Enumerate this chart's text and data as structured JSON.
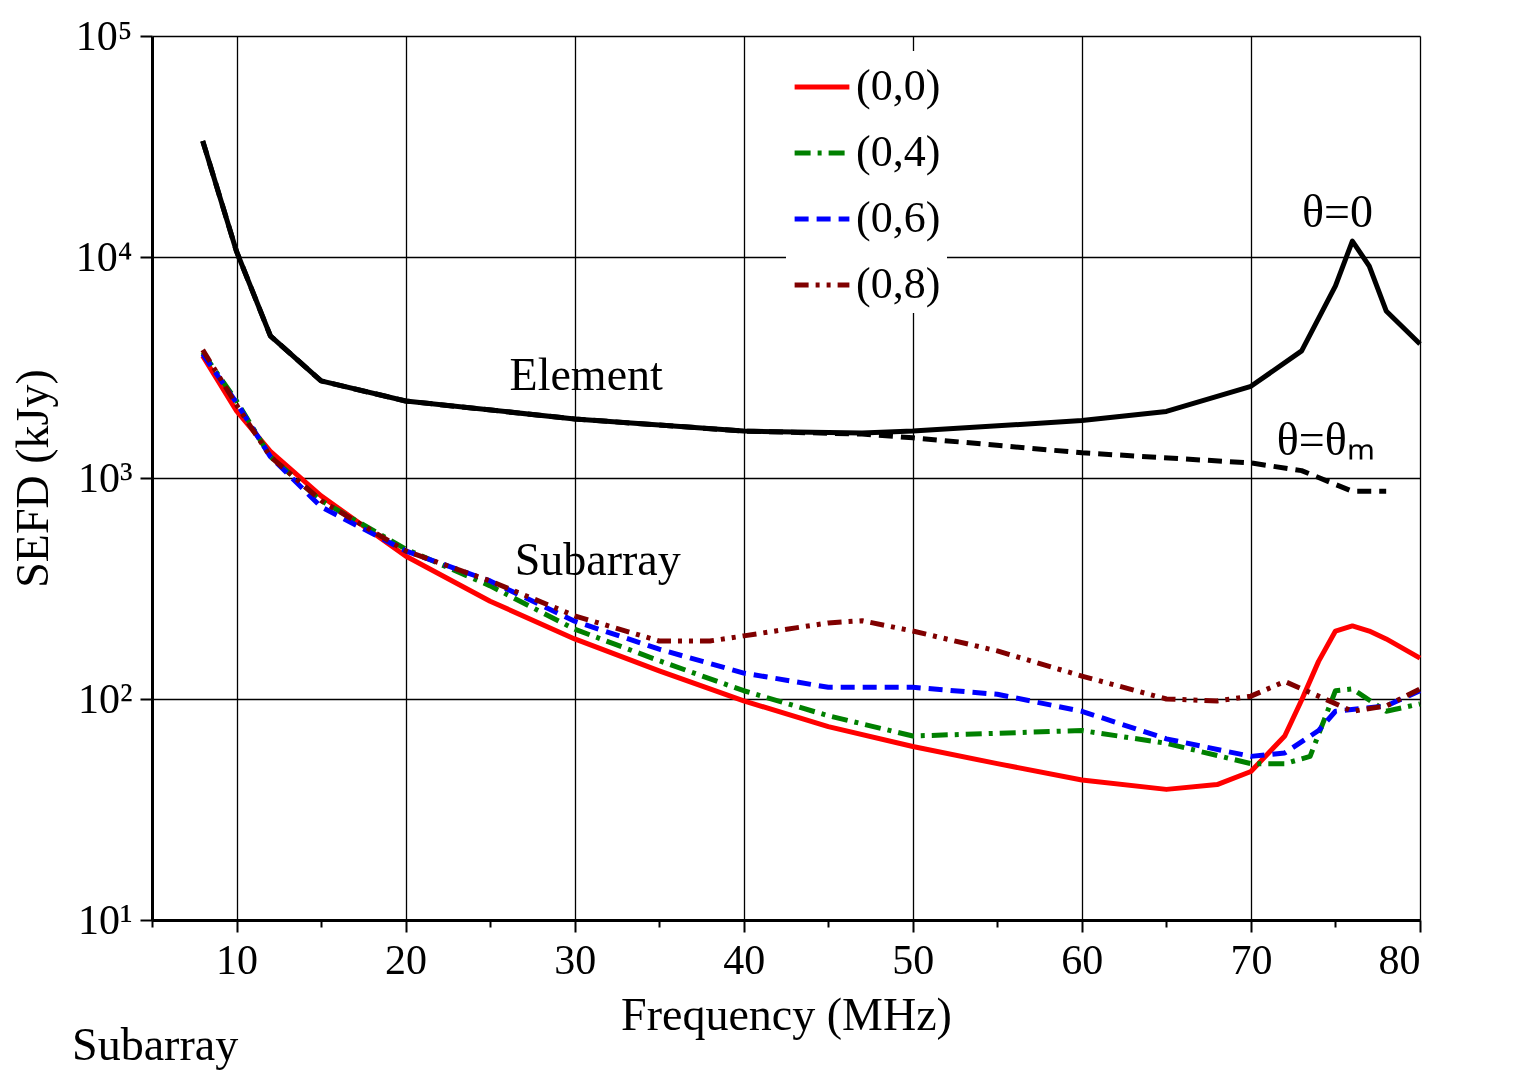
{
  "chart_data": {
    "type": "line",
    "xlabel": "Frequency (MHz)",
    "ylabel": "SEFD (kJy)",
    "xlim": [
      5,
      80
    ],
    "xticks": [
      {
        "value": 5,
        "label": null
      },
      10,
      {
        "value": 15,
        "label": null
      },
      20,
      {
        "value": 25,
        "label": null
      },
      30,
      {
        "value": 35,
        "label": null
      },
      40,
      {
        "value": 45,
        "label": null
      },
      50,
      {
        "value": 55,
        "label": null
      },
      60,
      {
        "value": 65,
        "label": null
      },
      70,
      {
        "value": 75,
        "label": null
      },
      80
    ],
    "ylim": [
      10,
      100000
    ],
    "yticks": [
      {
        "value": 10,
        "label": "10¹"
      },
      {
        "value": 100,
        "label": "10²"
      },
      {
        "value": 1000,
        "label": "10³"
      },
      {
        "value": 10000,
        "label": "10⁴"
      },
      {
        "value": 100000,
        "label": "10⁵"
      }
    ],
    "log": "y",
    "grid": true,
    "legend": "top right",
    "marker": "none",
    "series": [
      {
        "name": "(0,0)",
        "color": "#ff0000",
        "line_style": "solid",
        "x": [
          8,
          10,
          12,
          15,
          20,
          25,
          30,
          35,
          40,
          45,
          50,
          55,
          60,
          65,
          68,
          70,
          72,
          73,
          74,
          75,
          76,
          77,
          78,
          80
        ],
        "values": [
          3570,
          2010,
          1320,
          830,
          444,
          277,
          187,
          134,
          98,
          75,
          61,
          51,
          43,
          39,
          41,
          47,
          68,
          99,
          148,
          203,
          214,
          203,
          187,
          153
        ]
      },
      {
        "name": "(0,4)",
        "color": "#008000",
        "line_style": "dashdot",
        "x": [
          8,
          10,
          12,
          15,
          20,
          25,
          30,
          35,
          40,
          45,
          50,
          55,
          60,
          65,
          70,
          72,
          73.5,
          75,
          76,
          78,
          80
        ],
        "values": [
          3700,
          2230,
          1250,
          790,
          477,
          325,
          207,
          149,
          109,
          84,
          68,
          70,
          72,
          63,
          51,
          51,
          55,
          109,
          111,
          88,
          95
        ]
      },
      {
        "name": "(0,6)",
        "color": "#0000ff",
        "line_style": "dashed",
        "x": [
          8,
          10,
          12,
          15,
          20,
          25,
          30,
          35,
          40,
          45,
          50,
          55,
          60,
          65,
          70,
          72,
          74,
          75,
          78,
          80
        ],
        "values": [
          3640,
          2190,
          1250,
          740,
          468,
          342,
          225,
          168,
          131,
          113,
          113,
          105,
          88,
          66,
          55,
          57,
          72,
          88,
          93,
          109
        ]
      },
      {
        "name": "(0,8)",
        "color": "#800000",
        "line_style": "dashdotdot",
        "x": [
          8,
          10,
          12,
          15,
          20,
          25,
          30,
          35,
          38,
          40,
          45,
          47,
          50,
          55,
          60,
          65,
          68,
          70,
          72,
          74,
          76,
          78,
          80
        ],
        "values": [
          3800,
          2140,
          1250,
          790,
          468,
          342,
          238,
          183,
          183,
          193,
          221,
          226,
          203,
          165,
          127,
          100,
          98,
          103,
          120,
          103,
          88,
          93,
          111
        ]
      },
      {
        "color": "#000000",
        "line_style": "solid",
        "x": [
          8,
          10,
          12,
          15,
          20,
          30,
          40,
          47,
          50,
          60,
          65,
          70,
          73,
          75,
          76,
          77,
          78,
          80
        ],
        "values": [
          33500,
          10600,
          4400,
          2750,
          2230,
          1850,
          1630,
          1600,
          1630,
          1820,
          2000,
          2600,
          3760,
          7400,
          11800,
          9100,
          5700,
          4040
        ]
      },
      {
        "color": "#000000",
        "line_style": "dashed",
        "x": [
          8,
          10,
          12,
          15,
          20,
          30,
          40,
          47,
          50,
          60,
          70,
          73,
          76,
          78
        ],
        "values": [
          33500,
          10600,
          4400,
          2750,
          2230,
          1850,
          1630,
          1580,
          1520,
          1300,
          1170,
          1080,
          870,
          870
        ]
      }
    ],
    "annotations": [
      "θ=0",
      "θ=θₘ",
      "Element",
      "Subarray",
      "Subarray"
    ]
  }
}
